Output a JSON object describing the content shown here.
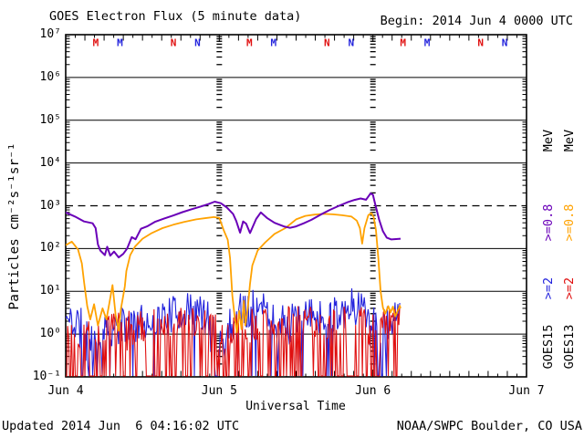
{
  "header": {
    "title": "GOES Electron Flux (5 minute data)",
    "begin": "Begin: 2014 Jun 4 0000 UTC"
  },
  "footer": {
    "updated": "Updated 2014 Jun  6 04:16:02 UTC",
    "source": "NOAA/SWPC Boulder, CO USA"
  },
  "colors": {
    "goes15_e2": "#2424dd",
    "goes15_e08": "#6a00b8",
    "goes13_e2": "#e01010",
    "goes13_e08": "#ffa200",
    "axis": "#000000"
  },
  "legend": {
    "columns": [
      {
        "satellite": "GOES15",
        "e2_label": ">=2",
        "e2_color": "#2424dd",
        "e08_label": ">=0.8",
        "e08_color": "#6a00b8",
        "mev_label": "MeV"
      },
      {
        "satellite": "GOES13",
        "e2_label": ">=2",
        "e2_color": "#e01010",
        "e08_label": ">=0.8",
        "e08_color": "#ffa200",
        "mev_label": "MeV"
      }
    ]
  },
  "chart_data": {
    "type": "line",
    "title": "GOES Electron Flux (5 minute data)",
    "xlabel": "Universal Time",
    "ylabel": "Particles cm⁻²s⁻¹sr⁻¹",
    "x_ticks": [
      "Jun 4",
      "Jun 5",
      "Jun 6",
      "Jun 7"
    ],
    "y_ticks": [
      "10⁷",
      "10⁶",
      "10⁵",
      "10⁴",
      "10³",
      "10²",
      "10¹",
      "10⁰",
      "10⁻¹"
    ],
    "x_range_days": [
      0,
      3
    ],
    "y_log_range": [
      -1,
      7
    ],
    "grid": "solid horizontal line at each decade, dashed threshold replaces 10^3",
    "dashed_threshold_value": 1000,
    "day_boundary_lines_days": [
      1,
      2
    ],
    "data_end_day": 2.18,
    "satellite_markers": {
      "description": "local midnight (M) and local noon (N) marks per day, red=GOES13 blue=GOES15",
      "per_day": [
        {
          "letter": "M",
          "color": "#e01010",
          "t_frac": 0.196
        },
        {
          "letter": "M",
          "color": "#2424dd",
          "t_frac": 0.353
        },
        {
          "letter": "N",
          "color": "#e01010",
          "t_frac": 0.701
        },
        {
          "letter": "N",
          "color": "#2424dd",
          "t_frac": 0.858
        }
      ],
      "days": [
        0,
        1,
        2
      ]
    },
    "series": [
      {
        "name": "GOES15 >=0.8 MeV",
        "satellite": "GOES15",
        "energy": ">=0.8 MeV",
        "color": "#6a00b8",
        "style": "line",
        "width": 2,
        "points": [
          [
            0.0,
            700
          ],
          [
            0.06,
            560
          ],
          [
            0.12,
            430
          ],
          [
            0.175,
            390
          ],
          [
            0.195,
            300
          ],
          [
            0.21,
            125
          ],
          [
            0.225,
            90
          ],
          [
            0.255,
            70
          ],
          [
            0.27,
            110
          ],
          [
            0.29,
            68
          ],
          [
            0.315,
            85
          ],
          [
            0.345,
            62
          ],
          [
            0.375,
            75
          ],
          [
            0.4,
            100
          ],
          [
            0.43,
            185
          ],
          [
            0.455,
            165
          ],
          [
            0.49,
            290
          ],
          [
            0.53,
            330
          ],
          [
            0.58,
            420
          ],
          [
            0.64,
            500
          ],
          [
            0.7,
            590
          ],
          [
            0.76,
            710
          ],
          [
            0.82,
            830
          ],
          [
            0.88,
            960
          ],
          [
            0.93,
            1100
          ],
          [
            0.97,
            1250
          ],
          [
            1.01,
            1150
          ],
          [
            1.05,
            900
          ],
          [
            1.09,
            640
          ],
          [
            1.11,
            440
          ],
          [
            1.135,
            235
          ],
          [
            1.155,
            430
          ],
          [
            1.175,
            380
          ],
          [
            1.2,
            230
          ],
          [
            1.24,
            490
          ],
          [
            1.27,
            700
          ],
          [
            1.31,
            520
          ],
          [
            1.36,
            400
          ],
          [
            1.42,
            330
          ],
          [
            1.46,
            305
          ],
          [
            1.5,
            330
          ],
          [
            1.55,
            390
          ],
          [
            1.6,
            470
          ],
          [
            1.66,
            620
          ],
          [
            1.72,
            800
          ],
          [
            1.78,
            1000
          ],
          [
            1.84,
            1230
          ],
          [
            1.88,
            1370
          ],
          [
            1.92,
            1480
          ],
          [
            1.955,
            1380
          ],
          [
            1.985,
            1950
          ],
          [
            2.0,
            1800
          ],
          [
            2.015,
            1080
          ],
          [
            2.04,
            480
          ],
          [
            2.065,
            255
          ],
          [
            2.09,
            180
          ],
          [
            2.12,
            163
          ],
          [
            2.18,
            170
          ]
        ]
      },
      {
        "name": "GOES13 >=0.8 MeV",
        "satellite": "GOES13",
        "energy": ">=0.8 MeV",
        "color": "#ffa200",
        "style": "line",
        "width": 1.8,
        "points": [
          [
            0.0,
            120
          ],
          [
            0.04,
            145
          ],
          [
            0.08,
            95
          ],
          [
            0.105,
            45
          ],
          [
            0.12,
            16
          ],
          [
            0.14,
            4.5
          ],
          [
            0.16,
            2.2
          ],
          [
            0.185,
            5
          ],
          [
            0.21,
            1.6
          ],
          [
            0.24,
            4
          ],
          [
            0.265,
            2.2
          ],
          [
            0.285,
            5.5
          ],
          [
            0.305,
            14
          ],
          [
            0.325,
            2.8
          ],
          [
            0.345,
            1.2
          ],
          [
            0.36,
            4
          ],
          [
            0.375,
            8
          ],
          [
            0.385,
            13
          ],
          [
            0.395,
            30
          ],
          [
            0.42,
            70
          ],
          [
            0.45,
            110
          ],
          [
            0.5,
            170
          ],
          [
            0.56,
            230
          ],
          [
            0.63,
            300
          ],
          [
            0.7,
            360
          ],
          [
            0.77,
            420
          ],
          [
            0.85,
            480
          ],
          [
            0.92,
            520
          ],
          [
            0.965,
            545
          ],
          [
            1.0,
            520
          ],
          [
            1.03,
            260
          ],
          [
            1.055,
            160
          ],
          [
            1.07,
            60
          ],
          [
            1.085,
            8
          ],
          [
            1.1,
            2.5
          ],
          [
            1.115,
            1.1
          ],
          [
            1.13,
            3.5
          ],
          [
            1.145,
            1.3
          ],
          [
            1.16,
            6
          ],
          [
            1.17,
            1.6
          ],
          [
            1.185,
            4
          ],
          [
            1.2,
            15
          ],
          [
            1.215,
            40
          ],
          [
            1.25,
            90
          ],
          [
            1.3,
            140
          ],
          [
            1.36,
            220
          ],
          [
            1.43,
            300
          ],
          [
            1.5,
            480
          ],
          [
            1.56,
            580
          ],
          [
            1.62,
            620
          ],
          [
            1.68,
            645
          ],
          [
            1.74,
            630
          ],
          [
            1.8,
            600
          ],
          [
            1.86,
            560
          ],
          [
            1.895,
            450
          ],
          [
            1.915,
            300
          ],
          [
            1.93,
            130
          ],
          [
            1.945,
            300
          ],
          [
            1.97,
            600
          ],
          [
            1.99,
            680
          ],
          [
            2.005,
            540
          ],
          [
            2.02,
            270
          ],
          [
            2.035,
            60
          ],
          [
            2.05,
            10
          ],
          [
            2.065,
            4.2
          ],
          [
            2.08,
            3.0
          ],
          [
            2.1,
            4.5
          ],
          [
            2.115,
            3.2
          ],
          [
            2.13,
            4.4
          ],
          [
            2.145,
            2.6
          ],
          [
            2.16,
            3.4
          ],
          [
            2.175,
            4.6
          ],
          [
            2.18,
            4.0
          ]
        ]
      },
      {
        "name": "GOES15 >=2 MeV",
        "satellite": "GOES15",
        "energy": ">=2 MeV",
        "color": "#2424dd",
        "style": "noisy",
        "width": 1.1,
        "seed": 11,
        "floor": 0.105,
        "floor_prob": 0.04,
        "dropout_floor_prob": 0.3,
        "dropout_lo_threshold": 0.3,
        "envelope": [
          [
            0.0,
            0.9,
            5.5
          ],
          [
            0.08,
            0.6,
            5
          ],
          [
            0.13,
            0.15,
            3.5
          ],
          [
            0.2,
            0.25,
            3
          ],
          [
            0.3,
            0.4,
            3.5
          ],
          [
            0.4,
            0.6,
            4.5
          ],
          [
            0.5,
            0.7,
            5
          ],
          [
            0.6,
            0.8,
            6
          ],
          [
            0.7,
            1.0,
            8
          ],
          [
            0.78,
            1.3,
            9
          ],
          [
            0.86,
            1.3,
            10
          ],
          [
            0.93,
            0.6,
            6
          ],
          [
            0.97,
            0.12,
            2.5
          ],
          [
            1.03,
            0.15,
            3
          ],
          [
            1.08,
            0.6,
            6
          ],
          [
            1.14,
            1.3,
            10
          ],
          [
            1.22,
            1.6,
            13
          ],
          [
            1.3,
            1.2,
            9
          ],
          [
            1.38,
            0.6,
            5.5
          ],
          [
            1.48,
            0.6,
            5.5
          ],
          [
            1.58,
            0.8,
            7
          ],
          [
            1.68,
            1.0,
            9
          ],
          [
            1.78,
            1.2,
            10
          ],
          [
            1.88,
            1.6,
            13
          ],
          [
            1.95,
            1.2,
            14
          ],
          [
            2.0,
            0.3,
            8
          ],
          [
            2.05,
            0.15,
            5
          ],
          [
            2.1,
            0.5,
            5
          ],
          [
            2.14,
            1.2,
            6
          ],
          [
            2.18,
            2.5,
            7.5
          ]
        ]
      },
      {
        "name": "GOES13 >=2 MeV",
        "satellite": "GOES13",
        "energy": ">=2 MeV",
        "color": "#e01010",
        "style": "noisy",
        "width": 1.1,
        "seed": 7,
        "floor": 0.105,
        "floor_prob": 0.48,
        "dropout_floor_prob": 0.48,
        "dropout_lo_threshold": 0,
        "envelope": [
          [
            0.0,
            0.35,
            3
          ],
          [
            0.1,
            0.3,
            2.8
          ],
          [
            0.2,
            0.35,
            3
          ],
          [
            0.3,
            0.35,
            3.2
          ],
          [
            0.4,
            0.4,
            3.5
          ],
          [
            0.5,
            0.45,
            3.8
          ],
          [
            0.6,
            0.5,
            4
          ],
          [
            0.7,
            0.55,
            4.5
          ],
          [
            0.8,
            0.6,
            5
          ],
          [
            0.9,
            0.5,
            4
          ],
          [
            1.0,
            0.35,
            2.8
          ],
          [
            1.1,
            0.45,
            3.5
          ],
          [
            1.2,
            0.6,
            4.5
          ],
          [
            1.3,
            0.7,
            5
          ],
          [
            1.4,
            0.55,
            4
          ],
          [
            1.5,
            0.7,
            5
          ],
          [
            1.6,
            0.8,
            5.5
          ],
          [
            1.7,
            0.8,
            6
          ],
          [
            1.8,
            0.75,
            5.5
          ],
          [
            1.9,
            0.7,
            5
          ],
          [
            2.0,
            0.45,
            3.5
          ],
          [
            2.08,
            0.5,
            4
          ],
          [
            2.14,
            0.7,
            4.5
          ],
          [
            2.18,
            0.8,
            4.5
          ]
        ]
      }
    ]
  }
}
